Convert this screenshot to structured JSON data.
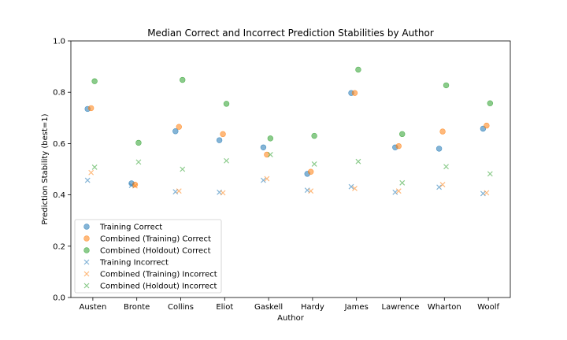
{
  "chart_data": {
    "type": "scatter",
    "title": "Median Correct and Incorrect Prediction Stabilities by Author",
    "xlabel": "Author",
    "ylabel": "Prediction Stability (best=1)",
    "ylim": [
      0.0,
      1.0
    ],
    "yticks": [
      "0.0",
      "0.2",
      "0.4",
      "0.6",
      "0.8",
      "1.0"
    ],
    "categories": [
      "Austen",
      "Bronte",
      "Collins",
      "Eliot",
      "Gaskell",
      "Hardy",
      "James",
      "Lawrence",
      "Wharton",
      "Woolf"
    ],
    "legend_position": "lower-left",
    "grid": false,
    "series": [
      {
        "name": "Training Correct",
        "marker": "circle",
        "color": "#1f77b4",
        "offset": -0.12,
        "values": [
          0.735,
          0.445,
          0.648,
          0.613,
          0.585,
          0.482,
          0.797,
          0.585,
          0.58,
          0.658
        ]
      },
      {
        "name": "Combined (Training) Correct",
        "marker": "circle",
        "color": "#ff7f0e",
        "offset": -0.04,
        "values": [
          0.738,
          0.44,
          0.665,
          0.637,
          0.557,
          0.49,
          0.797,
          0.59,
          0.647,
          0.67
        ]
      },
      {
        "name": "Combined (Holdout) Correct",
        "marker": "circle",
        "color": "#2ca02c",
        "offset": 0.04,
        "values": [
          0.843,
          0.603,
          0.848,
          0.755,
          0.62,
          0.63,
          0.888,
          0.637,
          0.827,
          0.757
        ]
      },
      {
        "name": "Training Incorrect",
        "marker": "x",
        "color": "#1f77b4",
        "offset": -0.12,
        "values": [
          0.457,
          0.437,
          0.412,
          0.41,
          0.457,
          0.418,
          0.432,
          0.41,
          0.43,
          0.405
        ]
      },
      {
        "name": "Combined (Training) Incorrect",
        "marker": "x",
        "color": "#ff7f0e",
        "offset": -0.04,
        "values": [
          0.487,
          0.435,
          0.415,
          0.408,
          0.463,
          0.415,
          0.425,
          0.415,
          0.44,
          0.408
        ]
      },
      {
        "name": "Combined (Holdout) Incorrect",
        "marker": "x",
        "color": "#2ca02c",
        "offset": 0.04,
        "values": [
          0.508,
          0.528,
          0.5,
          0.533,
          0.557,
          0.52,
          0.53,
          0.447,
          0.51,
          0.482
        ]
      }
    ]
  }
}
